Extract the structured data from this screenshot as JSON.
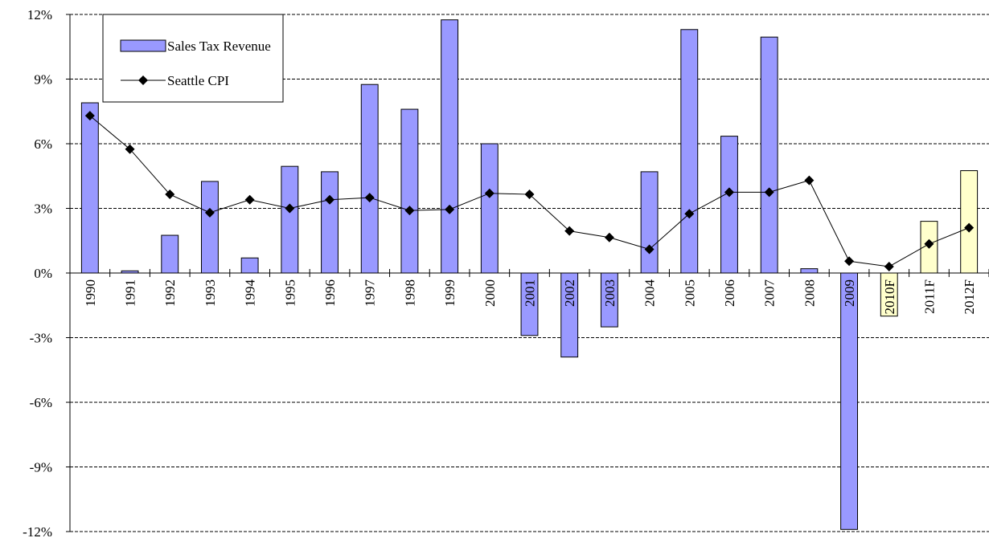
{
  "chart_data": {
    "type": "bar-line",
    "categories": [
      "1990",
      "1991",
      "1992",
      "1993",
      "1994",
      "1995",
      "1996",
      "1997",
      "1998",
      "1999",
      "2000",
      "2001",
      "2002",
      "2003",
      "2004",
      "2005",
      "2006",
      "2007",
      "2008",
      "2009",
      "2010F",
      "2011F",
      "2012F"
    ],
    "series": [
      {
        "name": "Sales Tax Revenue",
        "type": "bar",
        "color": "#9999ff",
        "bar_colors": [
          "#9999ff",
          "#9999ff",
          "#9999ff",
          "#9999ff",
          "#9999ff",
          "#9999ff",
          "#9999ff",
          "#9999ff",
          "#9999ff",
          "#9999ff",
          "#9999ff",
          "#9999ff",
          "#9999ff",
          "#9999ff",
          "#9999ff",
          "#9999ff",
          "#9999ff",
          "#9999ff",
          "#9999ff",
          "#9999ff",
          "#ffffcc",
          "#ffffcc",
          "#ffffcc"
        ],
        "values": [
          7.9,
          0.1,
          1.75,
          4.25,
          0.7,
          4.95,
          4.7,
          8.75,
          7.6,
          11.75,
          6.0,
          -2.9,
          -3.9,
          -2.5,
          4.7,
          11.3,
          6.35,
          10.95,
          0.2,
          -11.9,
          -2.0,
          2.4,
          4.75
        ]
      },
      {
        "name": "Seattle CPI",
        "type": "line",
        "color": "#000000",
        "values": [
          7.3,
          5.75,
          3.65,
          2.8,
          3.4,
          3.0,
          3.4,
          3.5,
          2.9,
          2.95,
          3.7,
          3.65,
          1.95,
          1.65,
          1.1,
          2.75,
          3.75,
          3.75,
          4.3,
          0.55,
          0.3,
          1.35,
          2.1
        ]
      }
    ],
    "ylim": [
      -12,
      12
    ],
    "yticks": [
      {
        "value": -12,
        "label": "-12%"
      },
      {
        "value": -9,
        "label": "-9%"
      },
      {
        "value": -6,
        "label": "-6%"
      },
      {
        "value": -3,
        "label": "-3%"
      },
      {
        "value": 0,
        "label": "0%"
      },
      {
        "value": 3,
        "label": "3%"
      },
      {
        "value": 6,
        "label": "6%"
      },
      {
        "value": 9,
        "label": "9%"
      },
      {
        "value": 12,
        "label": "12%"
      }
    ],
    "grid": true,
    "legend": "top-left"
  }
}
